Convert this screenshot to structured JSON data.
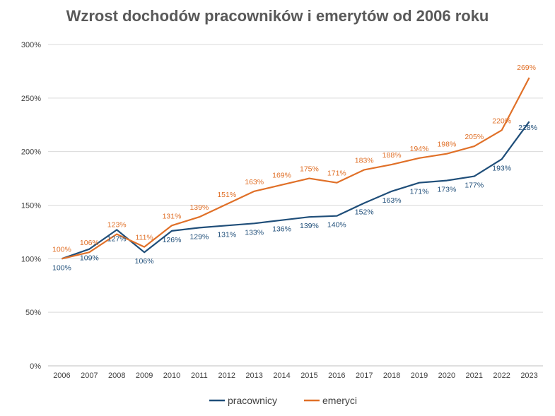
{
  "chart_data": {
    "type": "line",
    "title": "Wzrost dochodów pracowników i emerytów od 2006 roku",
    "xlabel": "",
    "ylabel": "",
    "ylim": [
      0,
      300
    ],
    "y_ticks": [
      0,
      50,
      100,
      150,
      200,
      250,
      300
    ],
    "y_tick_labels": [
      "0%",
      "50%",
      "100%",
      "150%",
      "200%",
      "250%",
      "300%"
    ],
    "grid": true,
    "legend_position": "bottom",
    "categories": [
      "2006",
      "2007",
      "2008",
      "2009",
      "2010",
      "2011",
      "2012",
      "2013",
      "2014",
      "2015",
      "2016",
      "2017",
      "2018",
      "2019",
      "2020",
      "2021",
      "2022",
      "2023"
    ],
    "series": [
      {
        "name": "pracownicy",
        "color": "#1f4e79",
        "values": [
          100,
          109,
          127,
          106,
          126,
          129,
          131,
          133,
          136,
          139,
          140,
          152,
          163,
          171,
          173,
          177,
          193,
          228
        ],
        "labels": [
          "100%",
          "109%",
          "127%",
          "106%",
          "126%",
          "129%",
          "131%",
          "133%",
          "136%",
          "139%",
          "140%",
          "152%",
          "163%",
          "171%",
          "173%",
          "177%",
          "193%",
          "228%"
        ]
      },
      {
        "name": "emeryci",
        "color": "#e07028",
        "values": [
          100,
          106,
          123,
          111,
          131,
          139,
          151,
          163,
          169,
          175,
          171,
          183,
          188,
          194,
          198,
          205,
          220,
          269
        ],
        "labels": [
          "100%",
          "106%",
          "123%",
          "111%",
          "131%",
          "139%",
          "151%",
          "163%",
          "169%",
          "175%",
          "171%",
          "183%",
          "188%",
          "194%",
          "198%",
          "205%",
          "220%",
          "269%"
        ]
      }
    ]
  }
}
